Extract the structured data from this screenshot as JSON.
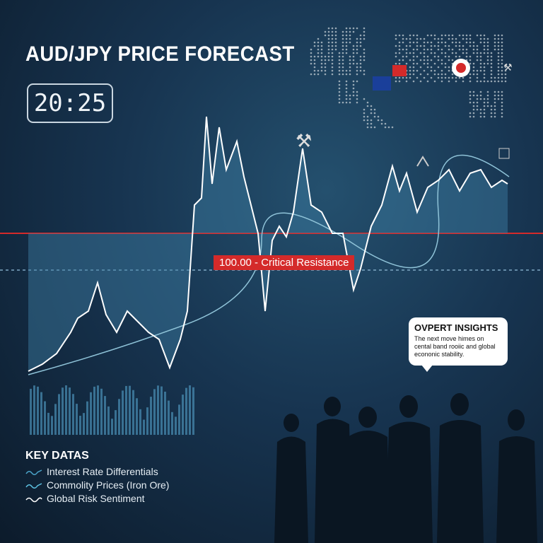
{
  "title": "AUD/JPY PRICE FORECAST",
  "clock": "20:25",
  "resistance": {
    "label": "100.00 - Critical Resistance",
    "color": "#d42a2a"
  },
  "insight": {
    "title": "OVPERT INSIGHTS",
    "body": "The next move himes on cental band rooiic and global econonic stability."
  },
  "key": {
    "title": "KEY DATAS",
    "items": [
      {
        "label": "Interest Rate Differentials",
        "icon": "wave-icon",
        "color": "#4aa3c8"
      },
      {
        "label": "Commolity Prices (Iron Ore)",
        "icon": "wave-icon",
        "color": "#5cc0e0"
      },
      {
        "label": "Global Risk Sentiment",
        "icon": "wave-icon",
        "color": "#ffffff"
      }
    ]
  },
  "icons": [
    "world-map-icon",
    "japan-flag-icon",
    "australia-flag-icon",
    "pickaxe-icon",
    "chip-icon",
    "people-silhouettes"
  ],
  "colors": {
    "background": "#173450",
    "line": "#ffffff",
    "accent": "#5cc0e0",
    "bear": "#e05050"
  }
}
